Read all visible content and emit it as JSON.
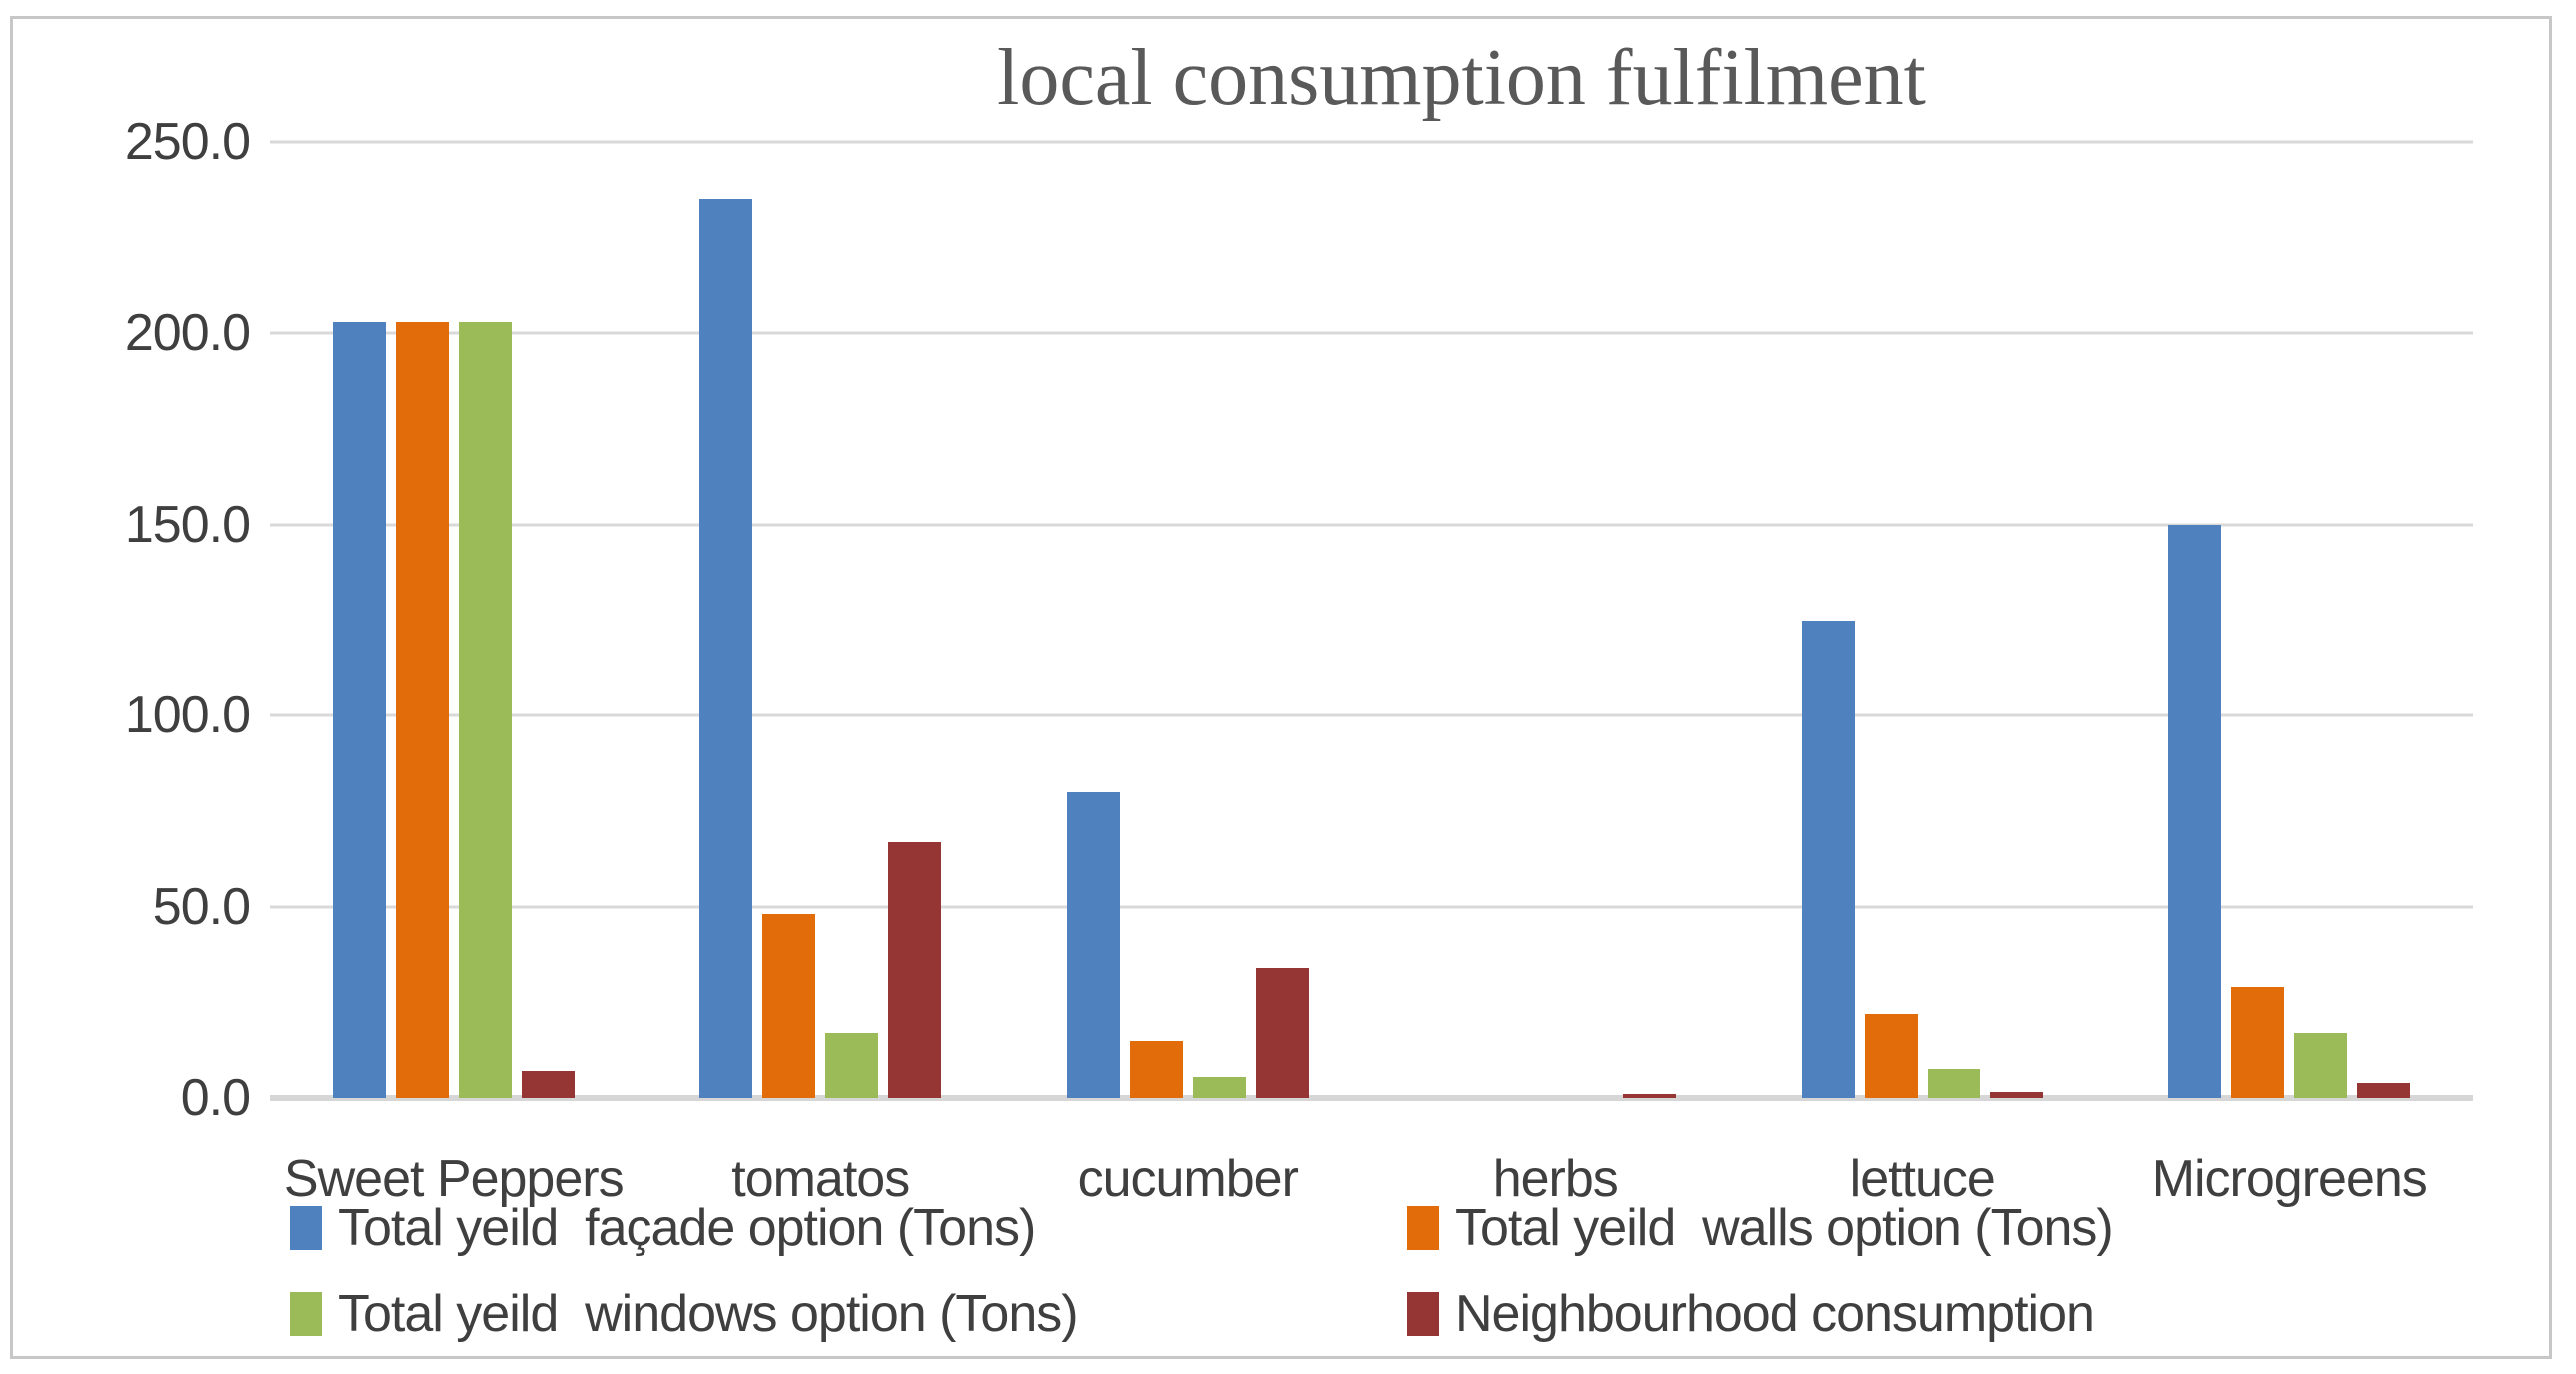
{
  "chart_data": {
    "type": "bar",
    "title": "local consumption fulfilment",
    "categories": [
      "Sweet Peppers",
      "tomatos",
      "cucumber",
      "herbs",
      "lettuce",
      "Microgreens"
    ],
    "series": [
      {
        "name": "Total yeild  façade option (Tons)",
        "color": "#4E81BD",
        "values": [
          203,
          235,
          80,
          0,
          125,
          150
        ]
      },
      {
        "name": "Total yeild  walls option (Tons)",
        "color": "#E36C0A",
        "values": [
          203,
          48,
          15,
          0,
          22,
          29
        ]
      },
      {
        "name": "Total yeild  windows option (Tons)",
        "color": "#9BBB59",
        "values": [
          203,
          17,
          5.5,
          0,
          7.5,
          17
        ]
      },
      {
        "name": "Neighbourhood consumption",
        "color": "#963634",
        "values": [
          7,
          67,
          34,
          1,
          1.5,
          4
        ]
      }
    ],
    "ylim": [
      0,
      250
    ],
    "ytick_values": [
      0,
      50,
      100,
      150,
      200,
      250
    ],
    "ytick_labels": [
      "0.0",
      "50.0",
      "100.0",
      "150.0",
      "200.0",
      "250.0"
    ],
    "grid": true,
    "legend_position": "bottom-two-columns",
    "colors": {
      "gridline": "#D9D9D9",
      "axis_text": "#3F3F3F",
      "title_text": "#595959",
      "frame_border": "#C7C7C7"
    }
  }
}
